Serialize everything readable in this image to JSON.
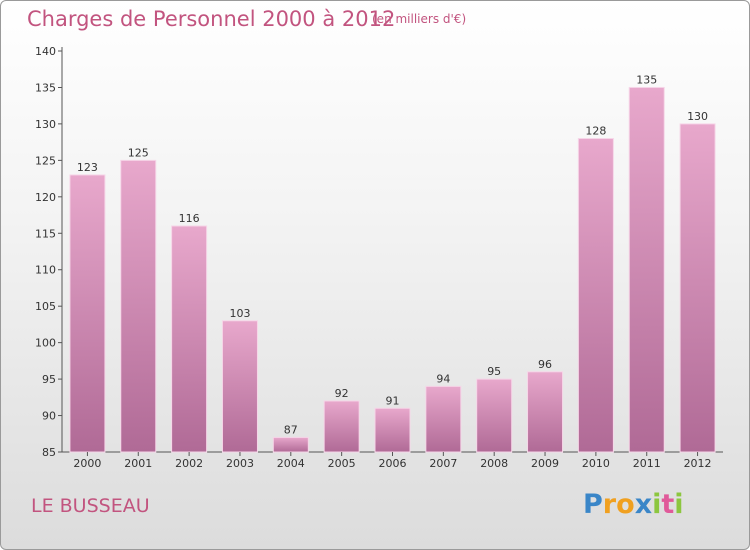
{
  "title": "Charges de Personnel 2000 à 2012",
  "subtitle": "(en milliers d'€)",
  "commune": "LE BUSSEAU",
  "logo": {
    "text": "Proxiti",
    "letters": [
      {
        "ch": "P",
        "color": "#3a86c8"
      },
      {
        "ch": "r",
        "color": "#f0a020"
      },
      {
        "ch": "o",
        "color": "#f0a020"
      },
      {
        "ch": "x",
        "color": "#3a86c8"
      },
      {
        "ch": "i",
        "color": "#8cc63f"
      },
      {
        "ch": "t",
        "color": "#e05a9a"
      },
      {
        "ch": "i",
        "color": "#8cc63f"
      }
    ]
  },
  "colors": {
    "bar_top": "#e8a8cc",
    "bar_bottom": "#b06a96",
    "text_accent": "#c2547f"
  },
  "chart_data": {
    "type": "bar",
    "title": "Charges de Personnel 2000 à 2012",
    "subtitle": "(en milliers d'€)",
    "categories": [
      "2000",
      "2001",
      "2002",
      "2003",
      "2004",
      "2005",
      "2006",
      "2007",
      "2008",
      "2009",
      "2010",
      "2011",
      "2012"
    ],
    "values": [
      123,
      125,
      116,
      103,
      87,
      92,
      91,
      94,
      95,
      96,
      128,
      135,
      130
    ],
    "ylim": [
      85,
      140
    ],
    "yticks": [
      85,
      90,
      95,
      100,
      105,
      110,
      115,
      120,
      125,
      130,
      135,
      140
    ],
    "grid": false,
    "data_labels": true
  }
}
